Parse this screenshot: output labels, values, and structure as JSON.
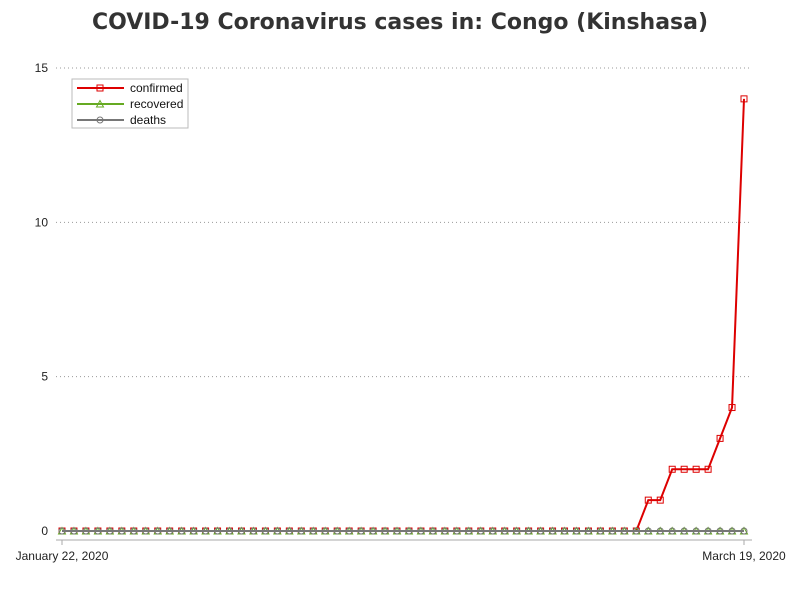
{
  "chart_data": {
    "type": "line",
    "title": "COVID-19 Coronavirus cases in: Congo (Kinshasa)",
    "xlabel": "",
    "ylabel": "",
    "x_start": "January 22, 2020",
    "x_end": "March 19, 2020",
    "x_tick_labels": [
      "January 22, 2020",
      "March 19, 2020"
    ],
    "y_ticks": [
      0,
      5,
      10,
      15
    ],
    "ylim": [
      0,
      15
    ],
    "grid": "horizontal dotted",
    "legend_position": "top-left",
    "series": [
      {
        "name": "confirmed",
        "color": "#dd0000",
        "marker": "square",
        "values": [
          0,
          0,
          0,
          0,
          0,
          0,
          0,
          0,
          0,
          0,
          0,
          0,
          0,
          0,
          0,
          0,
          0,
          0,
          0,
          0,
          0,
          0,
          0,
          0,
          0,
          0,
          0,
          0,
          0,
          0,
          0,
          0,
          0,
          0,
          0,
          0,
          0,
          0,
          0,
          0,
          0,
          0,
          0,
          0,
          0,
          0,
          0,
          0,
          0,
          1,
          1,
          2,
          2,
          2,
          2,
          3,
          4,
          14
        ]
      },
      {
        "name": "recovered",
        "color": "#66aa22",
        "marker": "triangle",
        "values": [
          0,
          0,
          0,
          0,
          0,
          0,
          0,
          0,
          0,
          0,
          0,
          0,
          0,
          0,
          0,
          0,
          0,
          0,
          0,
          0,
          0,
          0,
          0,
          0,
          0,
          0,
          0,
          0,
          0,
          0,
          0,
          0,
          0,
          0,
          0,
          0,
          0,
          0,
          0,
          0,
          0,
          0,
          0,
          0,
          0,
          0,
          0,
          0,
          0,
          0,
          0,
          0,
          0,
          0,
          0,
          0,
          0,
          0
        ]
      },
      {
        "name": "deaths",
        "color": "#777777",
        "marker": "circle",
        "values": [
          0,
          0,
          0,
          0,
          0,
          0,
          0,
          0,
          0,
          0,
          0,
          0,
          0,
          0,
          0,
          0,
          0,
          0,
          0,
          0,
          0,
          0,
          0,
          0,
          0,
          0,
          0,
          0,
          0,
          0,
          0,
          0,
          0,
          0,
          0,
          0,
          0,
          0,
          0,
          0,
          0,
          0,
          0,
          0,
          0,
          0,
          0,
          0,
          0,
          0,
          0,
          0,
          0,
          0,
          0,
          0,
          0,
          0
        ]
      }
    ]
  }
}
